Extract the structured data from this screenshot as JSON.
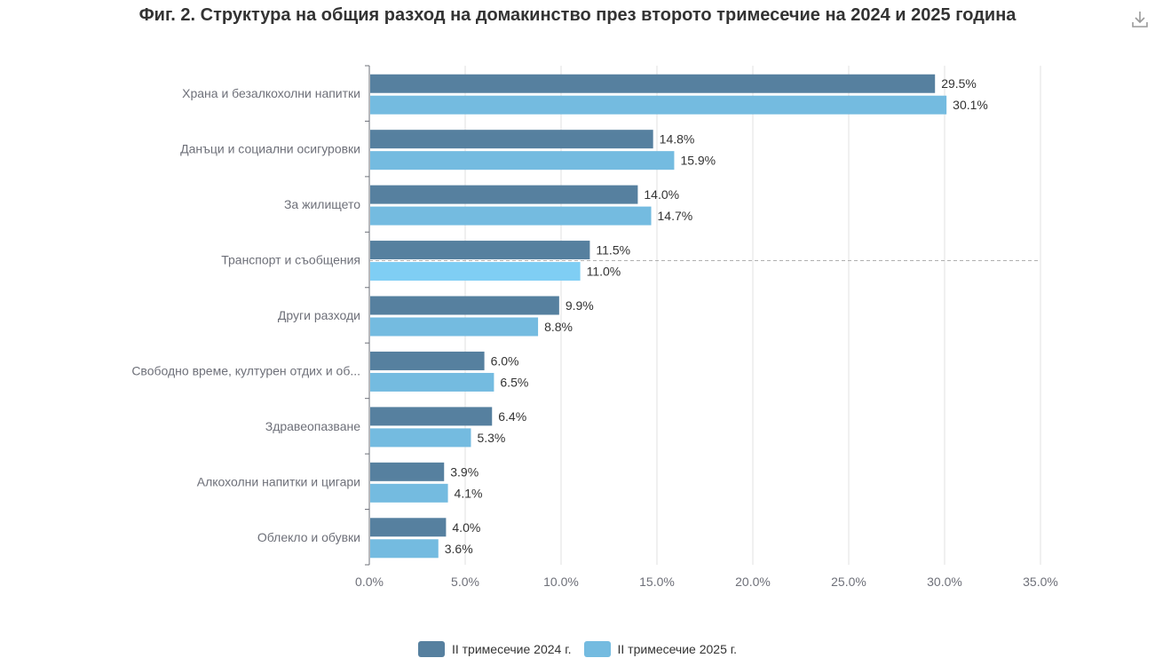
{
  "chart_data": {
    "type": "bar",
    "orientation": "horizontal",
    "title": "Фиг. 2. Структура на общия разход на домакинство през второто тримесечие на 2024 и 2025 година",
    "categories": [
      "Храна и безалкохолни напитки",
      "Данъци и социални осигуровки",
      "За жилището",
      "Транспорт и съобщения",
      "Други разходи",
      "Свободно време, културен отдих и об...",
      "Здравеопазване",
      "Алкохолни напитки и цигари",
      "Облекло и обувки"
    ],
    "series": [
      {
        "name": "II тримесечие 2024 г.",
        "color": "#56809f",
        "values": [
          29.5,
          14.8,
          14.0,
          11.5,
          9.9,
          6.0,
          6.4,
          3.9,
          4.0
        ],
        "labels": [
          "29.5%",
          "14.8%",
          "14.0%",
          "11.5%",
          "9.9%",
          "6.0%",
          "6.4%",
          "3.9%",
          "4.0%"
        ]
      },
      {
        "name": "II тримесечие 2025 г.",
        "color": "#74bbe0",
        "values": [
          30.1,
          15.9,
          14.7,
          11.0,
          8.8,
          6.5,
          5.3,
          4.1,
          3.6
        ],
        "labels": [
          "30.1%",
          "15.9%",
          "14.7%",
          "11.0%",
          "8.8%",
          "6.5%",
          "5.3%",
          "4.1%",
          "3.6%"
        ]
      }
    ],
    "xlim": [
      0,
      35
    ],
    "xticks": [
      0,
      5,
      10,
      15,
      20,
      25,
      30,
      35
    ],
    "xtick_labels": [
      "0.0%",
      "5.0%",
      "10.0%",
      "15.0%",
      "20.0%",
      "25.0%",
      "30.0%",
      "35.0%"
    ],
    "grid": "vertical",
    "legend_position": "bottom-center",
    "highlighted_category": "Транспорт и съобщения",
    "highlight_color": "#7fcef4"
  },
  "toolbar": {
    "download_icon": "download-icon"
  }
}
